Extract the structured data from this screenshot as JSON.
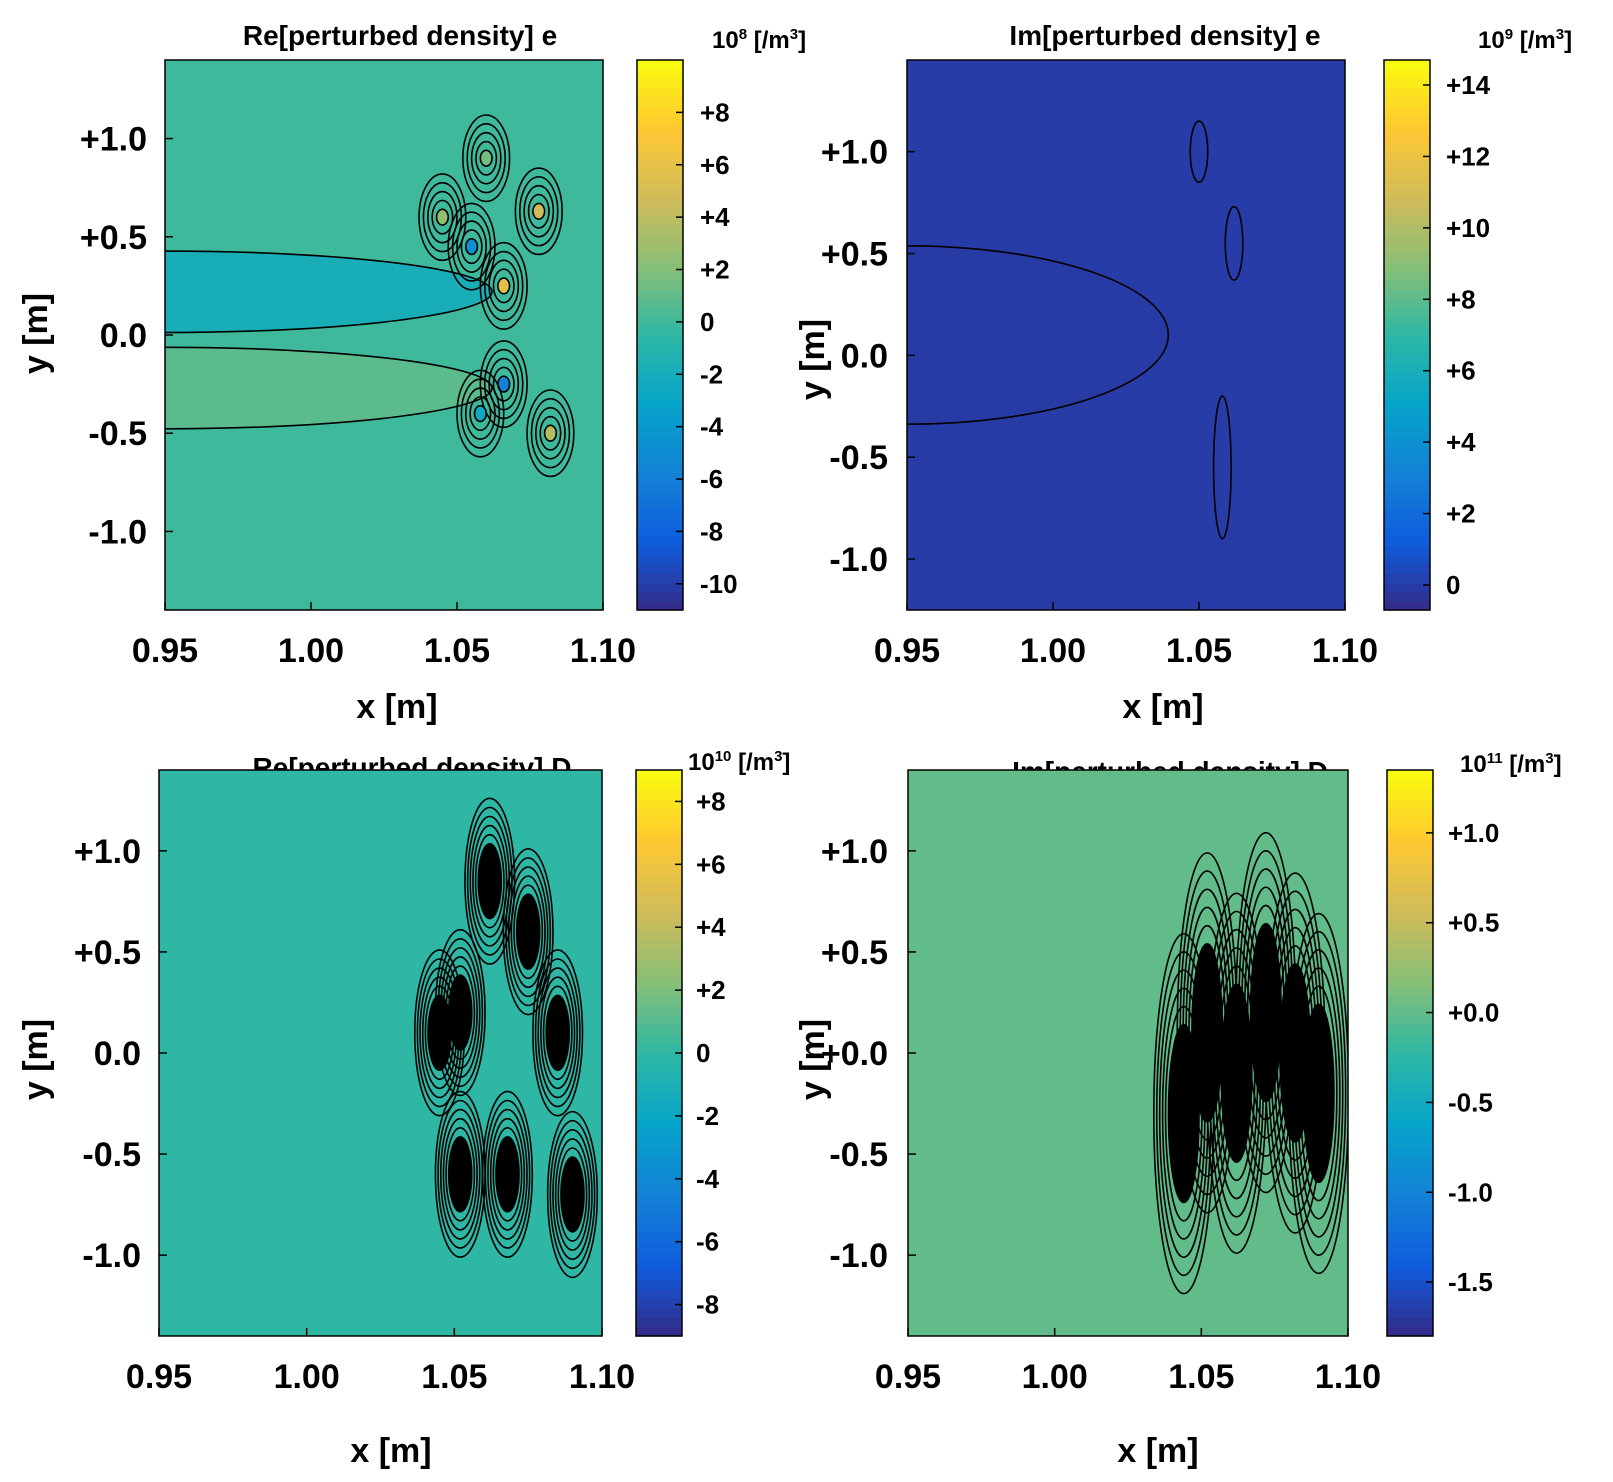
{
  "colors": {
    "parula": [
      "#352a87",
      "#0f5cdd",
      "#1481d6",
      "#06a4ca",
      "#2eb7a4",
      "#87bf77",
      "#d1bb59",
      "#fec832",
      "#f9fb0e"
    ],
    "contour": "#000000"
  },
  "chart_data": [
    {
      "type": "heatmap",
      "title": "Re[perturbed density] e",
      "colorbar_label_exp": "8",
      "colorbar_label_base": "10",
      "colorbar_label_unit": "[/m",
      "colorbar_label_unit_exp": "3",
      "colorbar_label_close": "]",
      "xlabel": "x [m]",
      "ylabel": "y [m]",
      "xlim": [
        0.95,
        1.1
      ],
      "ylim": [
        -1.4,
        1.4
      ],
      "xticks": [
        0.95,
        1.0,
        1.05,
        1.1
      ],
      "xtick_labels": [
        "0.95",
        "1.00",
        "1.05",
        "1.10"
      ],
      "yticks": [
        1.0,
        0.5,
        0.0,
        -0.5,
        -1.0
      ],
      "ytick_labels": [
        "+1.0",
        "+0.5",
        "0.0",
        "-0.5",
        "-1.0"
      ],
      "clim": [
        -11,
        10
      ],
      "cticks": [
        8,
        6,
        4,
        2,
        0,
        -2,
        -4,
        -6,
        -8,
        -10
      ],
      "ctick_labels": [
        "+8",
        "+6",
        "+4",
        "+2",
        "0",
        "-2",
        "-4",
        "-6",
        "-8",
        "-10"
      ],
      "background_value": 0
    },
    {
      "type": "heatmap",
      "title": "Im[perturbed density] e",
      "colorbar_label_exp": "9",
      "colorbar_label_base": "10",
      "colorbar_label_unit": "[/m",
      "colorbar_label_unit_exp": "3",
      "colorbar_label_close": "]",
      "xlabel": "x [m]",
      "ylabel": "y [m]",
      "xlim": [
        0.95,
        1.1
      ],
      "ylim": [
        -1.25,
        1.45
      ],
      "xticks": [
        0.95,
        1.0,
        1.05,
        1.1
      ],
      "xtick_labels": [
        "0.95",
        "1.00",
        "1.05",
        "1.10"
      ],
      "yticks": [
        1.0,
        0.5,
        0.0,
        -0.5,
        -1.0
      ],
      "ytick_labels": [
        "+1.0",
        "+0.5",
        "0.0",
        "-0.5",
        "-1.0"
      ],
      "clim": [
        -0.7,
        14.7
      ],
      "cticks": [
        14,
        12,
        10,
        8,
        6,
        4,
        2,
        0
      ],
      "ctick_labels": [
        "+14",
        "+12",
        "+10",
        "+8",
        "+6",
        "+4",
        "+2",
        "0"
      ],
      "background_value": 0
    },
    {
      "type": "heatmap",
      "title": "Re[perturbed density] D",
      "colorbar_label_exp": "10",
      "colorbar_label_base": "10",
      "colorbar_label_unit": "[/m",
      "colorbar_label_unit_exp": "3",
      "colorbar_label_close": "]",
      "xlabel": "x [m]",
      "ylabel": "y [m]",
      "xlim": [
        0.95,
        1.1
      ],
      "ylim": [
        -1.4,
        1.4
      ],
      "xticks": [
        0.95,
        1.0,
        1.05,
        1.1
      ],
      "xtick_labels": [
        "0.95",
        "1.00",
        "1.05",
        "1.10"
      ],
      "yticks": [
        1.0,
        0.5,
        0.0,
        -0.5,
        -1.0
      ],
      "ytick_labels": [
        "+1.0",
        "+0.5",
        "0.0",
        "-0.5",
        "-1.0"
      ],
      "clim": [
        -9,
        9
      ],
      "cticks": [
        8,
        6,
        4,
        2,
        0,
        -2,
        -4,
        -6,
        -8
      ],
      "ctick_labels": [
        "+8",
        "+6",
        "+4",
        "+2",
        "0",
        "-2",
        "-4",
        "-6",
        "-8"
      ],
      "background_value": 0
    },
    {
      "type": "heatmap",
      "title": "Im[perturbed density] D",
      "colorbar_label_exp": "11",
      "colorbar_label_base": "10",
      "colorbar_label_unit": "[/m",
      "colorbar_label_unit_exp": "3",
      "colorbar_label_close": "]",
      "xlabel": "x [m]",
      "ylabel": "y [m]",
      "xlim": [
        0.95,
        1.1
      ],
      "ylim": [
        -1.4,
        1.4
      ],
      "xticks": [
        0.95,
        1.0,
        1.05,
        1.1
      ],
      "xtick_labels": [
        "0.95",
        "1.00",
        "1.05",
        "1.10"
      ],
      "yticks": [
        1.0,
        0.5,
        0.0,
        -0.5,
        -1.0
      ],
      "ytick_labels": [
        "+1.0",
        "+0.5",
        "+0.0",
        "-0.5",
        "-1.0"
      ],
      "clim": [
        -1.8,
        1.35
      ],
      "cticks": [
        1.0,
        0.5,
        0.0,
        -0.5,
        -1.0,
        -1.5
      ],
      "ctick_labels": [
        "+1.0",
        "+0.5",
        "+0.0",
        "-0.5",
        "-1.0",
        "-1.5"
      ],
      "background_value": 0
    }
  ]
}
